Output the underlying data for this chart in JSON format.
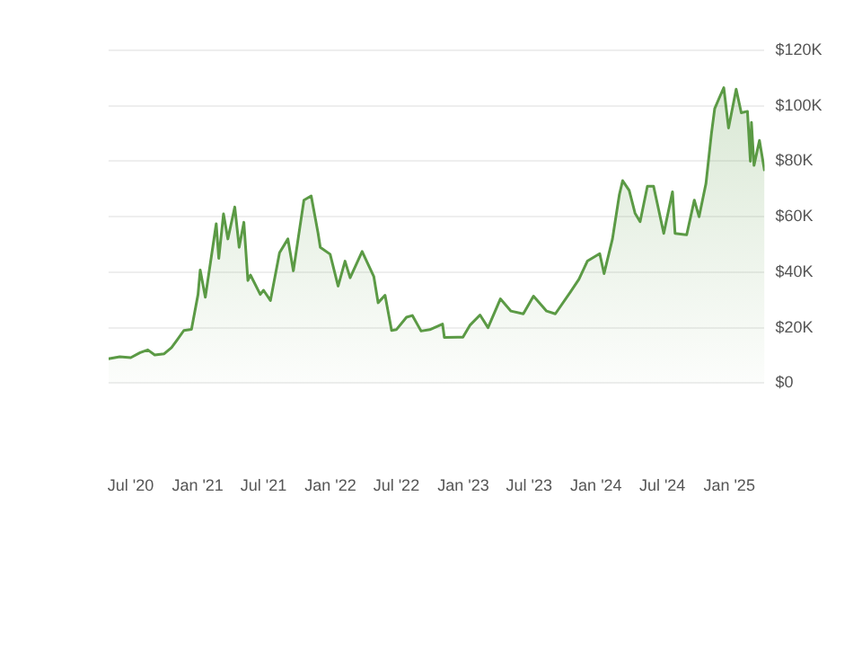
{
  "chart_data": {
    "type": "area",
    "color": "#5b9a45",
    "x": [
      "2020-05-01",
      "2020-06-01",
      "2020-07-01",
      "2020-07-27",
      "2020-08-17",
      "2020-09-05",
      "2020-10-01",
      "2020-10-21",
      "2020-11-05",
      "2020-11-24",
      "2020-12-15",
      "2021-01-02",
      "2021-01-08",
      "2021-01-22",
      "2021-02-08",
      "2021-02-21",
      "2021-02-28",
      "2021-03-13",
      "2021-03-25",
      "2021-04-13",
      "2021-04-25",
      "2021-05-08",
      "2021-05-19",
      "2021-05-26",
      "2021-06-22",
      "2021-07-01",
      "2021-07-20",
      "2021-08-14",
      "2021-09-06",
      "2021-09-21",
      "2021-10-20",
      "2021-11-09",
      "2021-11-28",
      "2021-12-04",
      "2021-12-31",
      "2022-01-22",
      "2022-02-10",
      "2022-02-24",
      "2022-03-29",
      "2022-04-30",
      "2022-05-12",
      "2022-05-31",
      "2022-06-18",
      "2022-07-01",
      "2022-07-29",
      "2022-08-14",
      "2022-09-07",
      "2022-10-01",
      "2022-11-05",
      "2022-11-10",
      "2022-12-31",
      "2023-01-20",
      "2023-02-16",
      "2023-03-10",
      "2023-04-13",
      "2023-05-12",
      "2023-06-15",
      "2023-07-13",
      "2023-08-18",
      "2023-09-11",
      "2023-10-23",
      "2023-11-15",
      "2023-12-08",
      "2024-01-11",
      "2024-01-23",
      "2024-02-15",
      "2024-03-05",
      "2024-03-14",
      "2024-04-01",
      "2024-04-17",
      "2024-05-01",
      "2024-05-21",
      "2024-06-07",
      "2024-07-05",
      "2024-07-29",
      "2024-08-05",
      "2024-09-06",
      "2024-09-27",
      "2024-10-10",
      "2024-10-29",
      "2024-11-13",
      "2024-11-22",
      "2024-12-05",
      "2024-12-17",
      "2024-12-30",
      "2025-01-20",
      "2025-02-03",
      "2025-02-20",
      "2025-02-28",
      "2025-03-03",
      "2025-03-10",
      "2025-03-25",
      "2025-04-08"
    ],
    "values": [
      8800,
      9500,
      9200,
      11000,
      12000,
      10200,
      10600,
      12800,
      15500,
      19000,
      19400,
      32000,
      40800,
      31000,
      46000,
      57500,
      45000,
      61000,
      52000,
      63500,
      49000,
      58000,
      37000,
      39000,
      32000,
      33500,
      29800,
      47000,
      52000,
      40500,
      66000,
      67500,
      54000,
      49000,
      46500,
      35000,
      44000,
      38000,
      47500,
      38500,
      29000,
      31700,
      19000,
      19300,
      23800,
      24400,
      18800,
      19300,
      21300,
      16500,
      16550,
      21000,
      24600,
      20000,
      30400,
      26000,
      25000,
      31400,
      26000,
      25000,
      33000,
      37500,
      44000,
      46700,
      39500,
      52000,
      68000,
      73000,
      69500,
      61300,
      58200,
      71000,
      71000,
      54000,
      69000,
      54000,
      53500,
      66000,
      60000,
      72000,
      90000,
      99000,
      103000,
      106500,
      92000,
      106000,
      97500,
      98000,
      80000,
      94000,
      78500,
      87500,
      76500
    ],
    "xlim": [
      "2020-05-01",
      "2025-04-08"
    ],
    "xticks": [
      {
        "value": "2020-07-01",
        "label": "Jul '20"
      },
      {
        "value": "2021-01-01",
        "label": "Jan '21"
      },
      {
        "value": "2021-07-01",
        "label": "Jul '21"
      },
      {
        "value": "2022-01-01",
        "label": "Jan '22"
      },
      {
        "value": "2022-07-01",
        "label": "Jul '22"
      },
      {
        "value": "2023-01-01",
        "label": "Jan '23"
      },
      {
        "value": "2023-07-01",
        "label": "Jul '23"
      },
      {
        "value": "2024-01-01",
        "label": "Jan '24"
      },
      {
        "value": "2024-07-01",
        "label": "Jul '24"
      },
      {
        "value": "2025-01-01",
        "label": "Jan '25"
      }
    ],
    "ylim": [
      0,
      120000
    ],
    "yticks": [
      {
        "value": 0,
        "label": "$0"
      },
      {
        "value": 20000,
        "label": "$20K"
      },
      {
        "value": 40000,
        "label": "$40K"
      },
      {
        "value": 60000,
        "label": "$60K"
      },
      {
        "value": 80000,
        "label": "$80K"
      },
      {
        "value": 100000,
        "label": "$100K"
      },
      {
        "value": 120000,
        "label": "$120K"
      }
    ],
    "grid": "y",
    "legend": false,
    "marker": "none",
    "line_style": "solid"
  }
}
